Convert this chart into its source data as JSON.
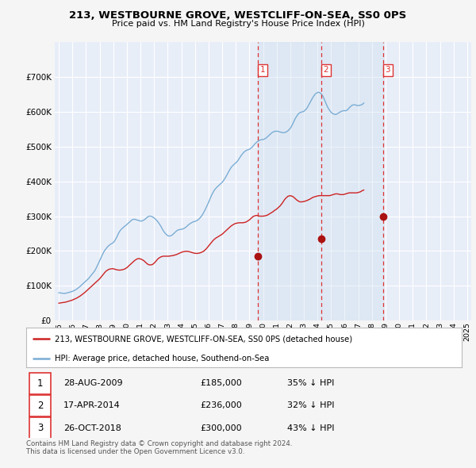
{
  "title": "213, WESTBOURNE GROVE, WESTCLIFF-ON-SEA, SS0 0PS",
  "subtitle": "Price paid vs. HM Land Registry's House Price Index (HPI)",
  "ylim": [
    0,
    800000
  ],
  "yticks": [
    0,
    100000,
    200000,
    300000,
    400000,
    500000,
    600000,
    700000
  ],
  "xlim_left": 1994.7,
  "xlim_right": 2025.3,
  "hpi_color": "#7aadd4",
  "price_color": "#cc2222",
  "vline_color": "#dd3333",
  "marker_color": "#aa1111",
  "background_color": "#f5f5f5",
  "plot_bg_color": "#e8eef8",
  "shade_color": "#ccddef",
  "grid_color": "#ffffff",
  "transactions": [
    {
      "label": "1",
      "date": 2009.65,
      "price": 185000,
      "text": "28-AUG-2009",
      "price_text": "£185,000",
      "hpi_text": "35% ↓ HPI"
    },
    {
      "label": "2",
      "date": 2014.29,
      "price": 236000,
      "text": "17-APR-2014",
      "price_text": "£236,000",
      "hpi_text": "32% ↓ HPI"
    },
    {
      "label": "3",
      "date": 2018.82,
      "price": 300000,
      "text": "26-OCT-2018",
      "price_text": "£300,000",
      "hpi_text": "43% ↓ HPI"
    }
  ],
  "legend_label_price": "213, WESTBOURNE GROVE, WESTCLIFF-ON-SEA, SS0 0PS (detached house)",
  "legend_label_hpi": "HPI: Average price, detached house, Southend-on-Sea",
  "footnote": "Contains HM Land Registry data © Crown copyright and database right 2024.\nThis data is licensed under the Open Government Licence v3.0.",
  "hpi_years_start": 1995.0,
  "hpi_years_end": 2024.5,
  "hpi_step": 0.0833,
  "hpi_values": [
    80000,
    79500,
    79000,
    78500,
    78200,
    78000,
    78500,
    79200,
    80000,
    81000,
    82000,
    83000,
    84000,
    85500,
    87000,
    89000,
    91000,
    93500,
    96000,
    99000,
    102000,
    105000,
    108000,
    111000,
    114000,
    117000,
    120000,
    124000,
    128000,
    132000,
    136000,
    140000,
    145000,
    151000,
    158000,
    165000,
    172000,
    179000,
    186000,
    193000,
    199000,
    204000,
    208000,
    212000,
    215000,
    218000,
    220000,
    222000,
    224000,
    228000,
    233000,
    239000,
    246000,
    253000,
    258000,
    262000,
    265000,
    268000,
    271000,
    273000,
    276000,
    279000,
    282000,
    285000,
    288000,
    290000,
    291000,
    291000,
    290000,
    289000,
    288000,
    287000,
    286000,
    286000,
    287000,
    289000,
    291000,
    294000,
    297000,
    299000,
    300000,
    300000,
    299000,
    297000,
    295000,
    292000,
    289000,
    285000,
    281000,
    276000,
    271000,
    265000,
    259000,
    254000,
    250000,
    247000,
    244000,
    243000,
    243000,
    244000,
    246000,
    249000,
    252000,
    255000,
    258000,
    260000,
    261000,
    262000,
    262000,
    263000,
    264000,
    266000,
    268000,
    271000,
    274000,
    277000,
    279000,
    281000,
    283000,
    284000,
    285000,
    286000,
    288000,
    290000,
    293000,
    297000,
    301000,
    306000,
    312000,
    318000,
    325000,
    332000,
    339000,
    347000,
    355000,
    362000,
    368000,
    374000,
    378000,
    382000,
    385000,
    388000,
    391000,
    394000,
    397000,
    401000,
    406000,
    411000,
    417000,
    423000,
    429000,
    435000,
    440000,
    444000,
    447000,
    450000,
    453000,
    456000,
    460000,
    465000,
    470000,
    475000,
    479000,
    483000,
    486000,
    488000,
    490000,
    491000,
    492000,
    494000,
    497000,
    500000,
    504000,
    508000,
    511000,
    514000,
    516000,
    518000,
    519000,
    520000,
    520000,
    521000,
    523000,
    525000,
    528000,
    531000,
    534000,
    537000,
    540000,
    542000,
    543000,
    544000,
    544000,
    544000,
    543000,
    542000,
    541000,
    540000,
    540000,
    540000,
    541000,
    543000,
    545000,
    548000,
    552000,
    557000,
    563000,
    570000,
    577000,
    583000,
    588000,
    593000,
    596000,
    598000,
    599000,
    600000,
    601000,
    604000,
    607000,
    611000,
    617000,
    623000,
    629000,
    635000,
    641000,
    646000,
    650000,
    653000,
    655000,
    656000,
    655000,
    653000,
    649000,
    644000,
    637000,
    629000,
    621000,
    614000,
    608000,
    603000,
    599000,
    596000,
    594000,
    593000,
    592000,
    593000,
    595000,
    597000,
    599000,
    601000,
    602000,
    603000,
    603000,
    603000,
    604000,
    607000,
    611000,
    614000,
    617000,
    619000,
    620000,
    620000,
    619000,
    618000,
    618000,
    618000,
    619000,
    620000,
    622000,
    625000
  ],
  "price_values": [
    50000,
    50500,
    51000,
    51500,
    52000,
    52500,
    53000,
    54000,
    55000,
    56000,
    57000,
    58000,
    59000,
    60500,
    62000,
    63500,
    65000,
    67000,
    69000,
    71000,
    73500,
    76000,
    78500,
    81000,
    84000,
    87000,
    90000,
    93000,
    96000,
    99000,
    102000,
    105000,
    108000,
    111000,
    114000,
    117000,
    120000,
    124000,
    128000,
    132000,
    136000,
    140000,
    143000,
    145000,
    147000,
    148000,
    148500,
    149000,
    149000,
    148000,
    147000,
    146000,
    145500,
    145000,
    145000,
    145500,
    146000,
    147000,
    148000,
    150000,
    152000,
    155000,
    158000,
    161000,
    164000,
    167000,
    170000,
    173000,
    175000,
    177000,
    178000,
    178000,
    177000,
    176000,
    174000,
    172000,
    169000,
    166000,
    163000,
    161000,
    160000,
    160000,
    160500,
    162000,
    165000,
    168000,
    172000,
    176000,
    179000,
    181000,
    183000,
    184000,
    185000,
    185000,
    185000,
    185000,
    185000,
    185000,
    185500,
    186000,
    186500,
    187000,
    188000,
    189000,
    190000,
    191500,
    193000,
    194500,
    196000,
    197000,
    198000,
    198500,
    199000,
    199000,
    198500,
    198000,
    197000,
    196000,
    195000,
    194000,
    193500,
    193000,
    193000,
    193500,
    194000,
    195000,
    196500,
    198000,
    200000,
    203000,
    206000,
    210000,
    214000,
    218000,
    222000,
    226000,
    230000,
    233000,
    236000,
    238000,
    240000,
    242000,
    244000,
    246000,
    248000,
    251000,
    254000,
    257000,
    260000,
    263000,
    266000,
    269000,
    272000,
    274000,
    276000,
    278000,
    279000,
    280000,
    280500,
    281000,
    281000,
    281000,
    281000,
    281500,
    282000,
    283000,
    285000,
    287000,
    289000,
    292000,
    295000,
    298000,
    300000,
    301000,
    302000,
    302000,
    301000,
    300000,
    300000,
    300000,
    300000,
    300500,
    301000,
    302000,
    303000,
    305000,
    307000,
    309000,
    311000,
    313000,
    316000,
    318000,
    320000,
    323000,
    326000,
    329000,
    333000,
    337000,
    342000,
    347000,
    351000,
    354000,
    357000,
    358000,
    359000,
    358000,
    357000,
    355000,
    352000,
    349000,
    346000,
    344000,
    342000,
    341000,
    341000,
    341500,
    342000,
    343000,
    344000,
    345000,
    347000,
    348000,
    350000,
    352000,
    354000,
    355000,
    356000,
    357000,
    358000,
    358500,
    359000,
    359000,
    359000,
    359000,
    359000,
    359000,
    359000,
    359000,
    359000,
    359000,
    360000,
    361000,
    362000,
    363000,
    364000,
    364000,
    364000,
    363000,
    362000,
    362000,
    362000,
    362000,
    363000,
    364000,
    365000,
    366000,
    367000,
    367000,
    367000,
    367000,
    367000,
    367000,
    367000,
    367000,
    368000,
    369000,
    370000,
    372000,
    374000,
    375000
  ]
}
